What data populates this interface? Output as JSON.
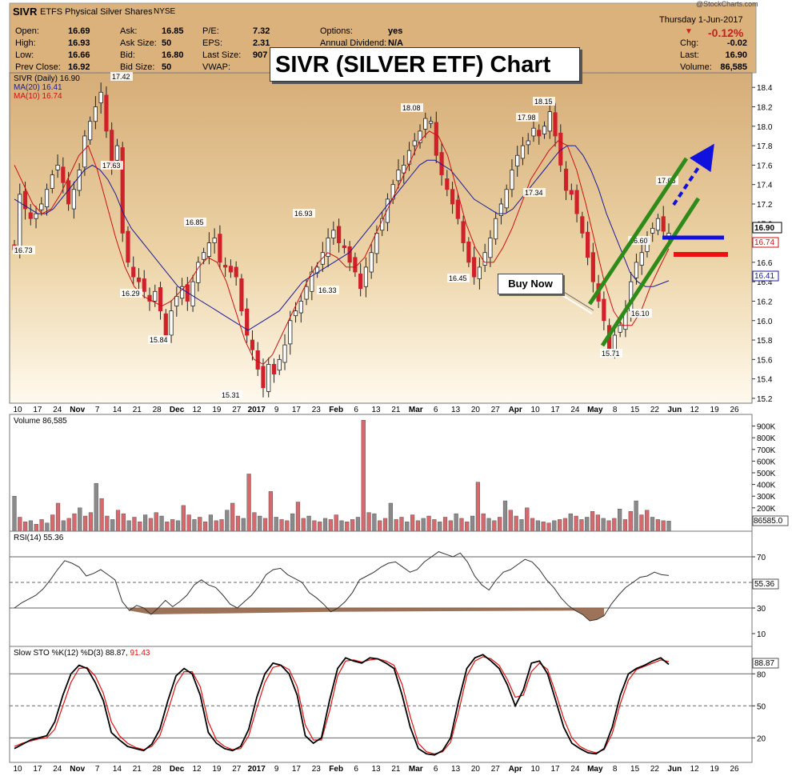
{
  "header": {
    "symbol": "SIVR",
    "name": "ETFS Physical Silver Shares",
    "exchange": "NYSE",
    "watermark": "@StockCharts.com",
    "date_line": "Thursday  1-Jun-2017",
    "fields": [
      {
        "label": "Open:",
        "value": "16.69"
      },
      {
        "label": "High:",
        "value": "16.93"
      },
      {
        "label": "Low:",
        "value": "16.66"
      },
      {
        "label": "Prev Close:",
        "value": "16.92"
      },
      {
        "label": "Ask:",
        "value": "16.85"
      },
      {
        "label": "Ask Size:",
        "value": "50"
      },
      {
        "label": "Bid:",
        "value": "16.80"
      },
      {
        "label": "Bid Size:",
        "value": "50"
      },
      {
        "label": "P/E:",
        "value": "7.32"
      },
      {
        "label": "EPS:",
        "value": "2.31"
      },
      {
        "label": "Last Size:",
        "value": "907 s"
      },
      {
        "label": "VWAP:",
        "value": ""
      },
      {
        "label": "Options:",
        "value": "yes"
      },
      {
        "label": "Annual Dividend:",
        "value": "N/A"
      }
    ],
    "change_pct": "-0.12%",
    "right_fields": [
      {
        "label": "Chg:",
        "value": "-0.02"
      },
      {
        "label": "Last:",
        "value": "16.90"
      },
      {
        "label": "Volume:",
        "value": "86,585"
      }
    ]
  },
  "banner": "SIVR (SILVER ETF) Chart",
  "buy_now": "Buy Now",
  "colors": {
    "up": "#222222",
    "down": "#d0202a",
    "ma20": "#1a1a99",
    "ma10": "#cc1111",
    "bg_top": "#d9b27e",
    "bg_bottom": "#fff8e8",
    "green": "#2e8b1a",
    "blue": "#1111dd",
    "red": "#ee1111"
  },
  "legend": {
    "price": "SIVR (Daily) 16.90",
    "ma20": "MA(20) 16.41",
    "ma10": "MA(10) 16.74",
    "volume": "Volume 86,585",
    "rsi": "RSI(14) 55.36",
    "sto": "Slow STO %K(12) %D(3) 88.87,",
    "sto_d": "91.43"
  },
  "x_labels": [
    "10",
    "17",
    "24",
    "Nov",
    "7",
    "14",
    "21",
    "28",
    "Dec",
    "12",
    "19",
    "27",
    "2017",
    "9",
    "17",
    "23",
    "Feb",
    "6",
    "13",
    "21",
    "Mar",
    "6",
    "13",
    "20",
    "27",
    "Apr",
    "10",
    "17",
    "24",
    "May",
    "8",
    "15",
    "22",
    "Jun",
    "12",
    "19",
    "26"
  ],
  "bold_x_labels": [
    "Nov",
    "Dec",
    "2017",
    "Feb",
    "Mar",
    "Apr",
    "May",
    "Jun"
  ],
  "price_panel": {
    "y_ticks": [
      "18.4",
      "18.2",
      "18.0",
      "17.8",
      "17.6",
      "17.4",
      "17.2",
      "17.0",
      "16.8",
      "16.6",
      "16.4",
      "16.2",
      "16.0",
      "15.8",
      "15.6",
      "15.4",
      "15.2"
    ],
    "ylim": [
      15.15,
      18.55
    ],
    "last_price": "16.90",
    "ma10_tag": "16.74",
    "ma20_tag": "16.41",
    "annotations": [
      "16.73",
      "17.42",
      "17.63",
      "16.29",
      "15.84",
      "16.85",
      "15.31",
      "16.93",
      "16.33",
      "18.08",
      "16.45",
      "17.98",
      "18.15",
      "17.34",
      "15.71",
      "16.60",
      "16.10",
      "17.05"
    ]
  },
  "volume_panel": {
    "y_ticks": [
      "900K",
      "800K",
      "700K",
      "600K",
      "500K",
      "400K",
      "300K",
      "200K"
    ],
    "last_tag": "86585.0"
  },
  "rsi_panel": {
    "y_ticks": [
      "70",
      "50",
      "30",
      "10"
    ],
    "last_tag": "55.36"
  },
  "sto_panel": {
    "y_ticks": [
      "80",
      "50",
      "20"
    ],
    "last_tag": "88.87"
  },
  "chart_data": [
    {
      "type": "candlestick",
      "title": "SIVR (Daily)",
      "ylim": [
        15.15,
        18.55
      ],
      "series": [
        {
          "name": "SIVR (Daily)",
          "values": [
            16.73,
            17.3,
            17.15,
            17.05,
            17.1,
            17.2,
            17.35,
            17.5,
            17.6,
            17.42,
            17.2,
            17.35,
            17.55,
            17.9,
            18.05,
            18.2,
            18.35,
            17.95,
            17.6,
            17.8,
            16.9,
            16.6,
            16.45,
            16.4,
            16.3,
            16.2,
            16.3,
            16.1,
            15.84,
            16.1,
            16.25,
            16.35,
            16.2,
            16.4,
            16.6,
            16.7,
            16.8,
            16.85,
            16.6,
            16.55,
            16.5,
            16.45,
            16.1,
            15.85,
            15.7,
            15.5,
            15.31,
            15.55,
            15.45,
            15.6,
            15.75,
            16.0,
            16.1,
            16.2,
            16.35,
            16.5,
            16.55,
            16.7,
            16.85,
            16.93,
            16.8,
            16.75,
            16.6,
            16.5,
            16.33,
            16.55,
            16.7,
            16.9,
            17.05,
            17.25,
            17.4,
            17.55,
            17.6,
            17.75,
            17.85,
            17.95,
            18.08,
            18.05,
            17.7,
            17.5,
            17.35,
            17.2,
            17.05,
            16.8,
            16.6,
            16.45,
            16.55,
            16.7,
            16.85,
            17.05,
            17.2,
            17.35,
            17.55,
            17.7,
            17.8,
            17.85,
            17.98,
            17.9,
            18.0,
            18.15,
            17.9,
            17.6,
            17.34,
            17.3,
            17.1,
            16.9,
            16.65,
            16.4,
            16.2,
            16.0,
            15.71,
            15.85,
            15.95,
            16.1,
            16.4,
            16.6,
            16.7,
            16.85,
            16.95,
            17.05,
            16.92,
            16.9
          ]
        },
        {
          "name": "MA(20)",
          "values": [
            17.25,
            17.2,
            17.15,
            17.1,
            17.1,
            17.15,
            17.25,
            17.35,
            17.45,
            17.55,
            17.6,
            17.55,
            17.45,
            17.3,
            17.1,
            16.95,
            16.85,
            16.75,
            16.65,
            16.55,
            16.45,
            16.35,
            16.3,
            16.25,
            16.2,
            16.15,
            16.1,
            16.05,
            16.0,
            15.95,
            15.9,
            15.95,
            16.0,
            16.05,
            16.1,
            16.2,
            16.3,
            16.4,
            16.45,
            16.5,
            16.55,
            16.6,
            16.65,
            16.7,
            16.8,
            16.9,
            17.0,
            17.1,
            17.2,
            17.3,
            17.4,
            17.5,
            17.6,
            17.65,
            17.65,
            17.6,
            17.55,
            17.45,
            17.35,
            17.25,
            17.2,
            17.15,
            17.1,
            17.1,
            17.15,
            17.25,
            17.35,
            17.45,
            17.55,
            17.65,
            17.75,
            17.8,
            17.8,
            17.7,
            17.55,
            17.35,
            17.1,
            16.9,
            16.7,
            16.5,
            16.4,
            16.35,
            16.35,
            16.38,
            16.41
          ]
        },
        {
          "name": "MA(10)",
          "values": [
            17.6,
            17.4,
            17.2,
            17.1,
            17.15,
            17.3,
            17.5,
            17.7,
            17.8,
            17.55,
            17.2,
            16.85,
            16.55,
            16.35,
            16.25,
            16.2,
            16.15,
            16.2,
            16.3,
            16.4,
            16.55,
            16.65,
            16.6,
            16.4,
            16.1,
            15.8,
            15.6,
            15.55,
            15.65,
            15.85,
            16.05,
            16.25,
            16.45,
            16.6,
            16.7,
            16.65,
            16.55,
            16.55,
            16.65,
            16.85,
            17.05,
            17.25,
            17.45,
            17.65,
            17.85,
            17.95,
            17.9,
            17.7,
            17.35,
            17.0,
            16.75,
            16.6,
            16.6,
            16.75,
            16.95,
            17.2,
            17.45,
            17.6,
            17.75,
            17.85,
            17.8,
            17.55,
            17.2,
            16.8,
            16.4,
            16.1,
            15.95,
            15.95,
            16.1,
            16.35,
            16.55,
            16.74
          ]
        }
      ]
    },
    {
      "type": "bar",
      "title": "Volume",
      "ylim": [
        0,
        1000000
      ],
      "values": [
        300000,
        120000,
        80000,
        90000,
        60000,
        100000,
        70000,
        140000,
        240000,
        90000,
        110000,
        150000,
        200000,
        130000,
        160000,
        410000,
        280000,
        130000,
        100000,
        180000,
        150000,
        90000,
        120000,
        80000,
        140000,
        110000,
        160000,
        130000,
        80000,
        100000,
        90000,
        220000,
        140000,
        100000,
        120000,
        80000,
        140000,
        90000,
        100000,
        180000,
        240000,
        130000,
        110000,
        490000,
        160000,
        130000,
        110000,
        340000,
        120000,
        100000,
        90000,
        150000,
        250000,
        110000,
        130000,
        90000,
        80000,
        110000,
        100000,
        140000,
        90000,
        80000,
        100000,
        120000,
        950000,
        160000,
        150000,
        90000,
        110000,
        240000,
        100000,
        120000,
        80000,
        140000,
        90000,
        110000,
        130000,
        100000,
        80000,
        120000,
        90000,
        150000,
        110000,
        80000,
        130000,
        420000,
        150000,
        110000,
        90000,
        120000,
        260000,
        180000,
        130000,
        100000,
        200000,
        110000,
        90000,
        80000,
        70000,
        90000,
        100000,
        110000,
        150000,
        130000,
        100000,
        120000,
        170000,
        140000,
        110000,
        90000,
        110000,
        190000,
        100000,
        170000,
        260000,
        140000,
        180000,
        120000,
        100000,
        90000,
        86585
      ]
    },
    {
      "type": "line",
      "title": "RSI(14)",
      "ylim": [
        0,
        90
      ],
      "values": [
        30,
        34,
        37,
        40,
        45,
        52,
        60,
        67,
        65,
        62,
        55,
        57,
        60,
        56,
        52,
        35,
        28,
        32,
        30,
        25,
        30,
        36,
        31,
        35,
        40,
        48,
        52,
        48,
        46,
        40,
        33,
        30,
        35,
        40,
        47,
        56,
        60,
        61,
        56,
        53,
        50,
        42,
        38,
        33,
        27,
        30,
        35,
        42,
        52,
        55,
        58,
        62,
        65,
        66,
        62,
        58,
        60,
        66,
        70,
        74,
        72,
        70,
        73,
        66,
        55,
        48,
        44,
        52,
        58,
        60,
        64,
        68,
        66,
        60,
        52,
        46,
        38,
        32,
        28,
        25,
        20,
        21,
        24,
        33,
        40,
        46,
        50,
        54,
        55,
        58,
        56,
        55.36
      ]
    },
    {
      "type": "line",
      "title": "Slow STO %K(12) %D(3)",
      "ylim": [
        0,
        100
      ],
      "series": [
        {
          "name": "%K",
          "values": [
            10,
            14,
            18,
            20,
            22,
            35,
            60,
            80,
            88,
            85,
            72,
            55,
            25,
            18,
            12,
            10,
            8,
            14,
            28,
            55,
            78,
            85,
            80,
            60,
            25,
            15,
            10,
            8,
            12,
            28,
            58,
            80,
            90,
            88,
            80,
            60,
            22,
            15,
            20,
            55,
            85,
            95,
            92,
            90,
            95,
            94,
            90,
            85,
            60,
            30,
            10,
            5,
            4,
            8,
            20,
            55,
            85,
            95,
            98,
            92,
            85,
            70,
            50,
            65,
            90,
            92,
            80,
            55,
            30,
            15,
            10,
            6,
            5,
            10,
            30,
            60,
            80,
            85,
            88,
            92,
            95,
            88.87
          ]
        },
        {
          "name": "%D",
          "values": [
            12,
            15,
            17,
            19,
            20,
            28,
            50,
            72,
            85,
            86,
            78,
            62,
            35,
            22,
            15,
            11,
            9,
            12,
            22,
            45,
            70,
            82,
            82,
            68,
            35,
            18,
            12,
            9,
            10,
            22,
            48,
            72,
            86,
            88,
            84,
            68,
            32,
            18,
            18,
            45,
            78,
            92,
            93,
            91,
            93,
            94,
            92,
            88,
            70,
            40,
            15,
            7,
            5,
            7,
            16,
            45,
            78,
            92,
            96,
            94,
            88,
            75,
            58,
            60,
            82,
            90,
            84,
            62,
            38,
            20,
            12,
            8,
            6,
            9,
            24,
            52,
            74,
            84,
            87,
            90,
            93,
            91.43
          ]
        }
      ]
    }
  ]
}
